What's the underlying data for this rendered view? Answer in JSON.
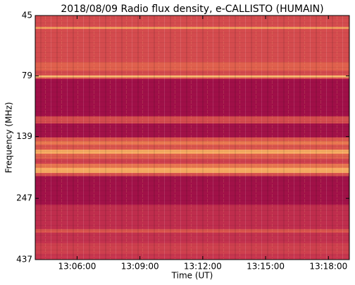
{
  "chart_data": {
    "type": "spectrogram",
    "title": "2018/08/09  Radio flux density, e-CALLISTO (HUMAIN)",
    "xlabel": "Time (UT)",
    "ylabel": "Frequency (MHz)",
    "xlim": [
      "13:04:00",
      "13:19:00"
    ],
    "xticks": [
      "13:06:00",
      "13:09:00",
      "13:12:00",
      "13:15:00",
      "13:18:00"
    ],
    "ylim": [
      45,
      437
    ],
    "yticks": [
      45,
      79,
      139,
      247,
      437
    ],
    "y_log": true,
    "y_inverted": true,
    "band_edges": [
      45,
      50,
      51,
      69.5,
      75.1,
      78.6,
      80.2,
      81.3,
      115,
      123,
      140,
      145,
      149.8,
      157,
      163,
      171,
      179,
      186,
      195,
      201,
      262,
      329,
      340,
      375,
      414,
      437
    ],
    "levels": [
      0.35,
      0.7,
      0.35,
      0.45,
      0.35,
      0.8,
      0.35,
      0.03,
      0.35,
      0.04,
      0.4,
      0.55,
      0.4,
      0.75,
      0.45,
      0.3,
      0.55,
      0.75,
      0.35,
      0.04,
      0.2,
      0.4,
      0.22,
      0.3,
      0.25
    ],
    "colormap": [
      "#9a0a47",
      "#c8364f",
      "#e66a4c",
      "#f7ab62",
      "#fde7a0"
    ]
  }
}
